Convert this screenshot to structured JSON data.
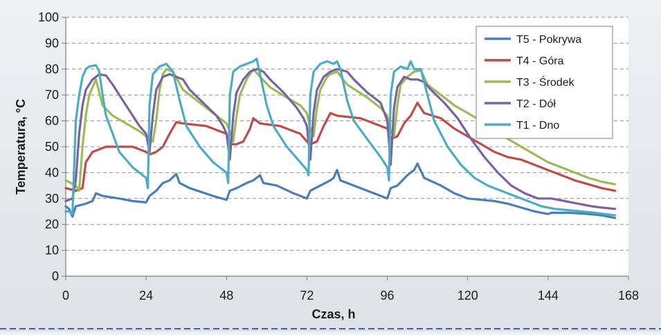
{
  "chart_data": {
    "type": "line",
    "xlabel": "Czas, h",
    "ylabel": "Temperatura, °C",
    "xlim": [
      0,
      168
    ],
    "ylim": [
      0,
      100
    ],
    "xticks": [
      0,
      24,
      48,
      72,
      96,
      120,
      144,
      168
    ],
    "yticks": [
      0,
      10,
      20,
      30,
      40,
      50,
      60,
      70,
      80,
      90,
      100
    ],
    "grid": "horizontal dashed",
    "legend_position": "top-right",
    "series": [
      {
        "name": "T5 - Pokrywa",
        "color": "#4a7ebb",
        "points": [
          [
            0,
            27
          ],
          [
            1,
            26
          ],
          [
            2,
            23
          ],
          [
            3,
            27
          ],
          [
            6,
            28
          ],
          [
            8,
            29
          ],
          [
            9,
            32
          ],
          [
            11,
            31
          ],
          [
            16,
            30
          ],
          [
            20,
            29
          ],
          [
            24,
            28.5
          ],
          [
            25,
            31
          ],
          [
            27,
            33
          ],
          [
            29,
            36
          ],
          [
            31,
            37
          ],
          [
            33,
            39.5
          ],
          [
            34,
            36
          ],
          [
            37,
            34
          ],
          [
            44,
            31
          ],
          [
            48,
            29.5
          ],
          [
            49,
            33
          ],
          [
            51,
            34
          ],
          [
            54,
            36
          ],
          [
            56,
            37
          ],
          [
            58,
            39
          ],
          [
            59,
            36
          ],
          [
            63,
            35
          ],
          [
            68,
            32
          ],
          [
            72,
            30
          ],
          [
            73,
            33
          ],
          [
            76,
            35
          ],
          [
            79,
            37
          ],
          [
            80,
            38
          ],
          [
            81,
            41
          ],
          [
            82,
            37
          ],
          [
            86,
            35
          ],
          [
            92,
            32
          ],
          [
            96,
            30
          ],
          [
            97,
            34
          ],
          [
            99,
            35
          ],
          [
            102,
            39
          ],
          [
            104,
            41
          ],
          [
            105,
            43.5
          ],
          [
            107,
            38
          ],
          [
            112,
            35
          ],
          [
            116,
            32
          ],
          [
            120,
            30
          ],
          [
            124,
            29.5
          ],
          [
            128,
            29
          ],
          [
            132,
            28
          ],
          [
            136,
            26.5
          ],
          [
            140,
            25
          ],
          [
            144,
            24
          ],
          [
            145,
            24.5
          ],
          [
            150,
            24.5
          ],
          [
            156,
            24
          ],
          [
            160,
            23.5
          ],
          [
            164,
            22.5
          ]
        ]
      },
      {
        "name": "T4 - Góra",
        "color": "#be4b48",
        "points": [
          [
            0,
            34
          ],
          [
            3,
            33
          ],
          [
            5,
            34
          ],
          [
            6,
            44
          ],
          [
            8,
            48
          ],
          [
            10,
            49
          ],
          [
            12,
            50
          ],
          [
            14,
            50
          ],
          [
            20,
            50
          ],
          [
            24,
            48
          ],
          [
            25,
            47
          ],
          [
            27,
            48
          ],
          [
            29,
            50
          ],
          [
            31,
            55
          ],
          [
            33,
            59.5
          ],
          [
            35,
            59
          ],
          [
            42,
            58
          ],
          [
            46,
            56
          ],
          [
            48,
            55
          ],
          [
            49,
            51
          ],
          [
            51,
            51
          ],
          [
            53,
            52
          ],
          [
            55,
            57
          ],
          [
            56,
            61
          ],
          [
            58,
            59
          ],
          [
            64,
            58
          ],
          [
            70,
            55
          ],
          [
            72,
            52
          ],
          [
            73,
            51
          ],
          [
            75,
            52
          ],
          [
            77,
            58
          ],
          [
            79,
            63
          ],
          [
            81,
            62
          ],
          [
            88,
            61
          ],
          [
            92,
            59
          ],
          [
            96,
            57
          ],
          [
            97,
            53
          ],
          [
            99,
            54
          ],
          [
            101,
            59
          ],
          [
            103,
            62
          ],
          [
            105,
            67
          ],
          [
            107,
            63
          ],
          [
            112,
            61
          ],
          [
            116,
            57
          ],
          [
            120,
            54
          ],
          [
            124,
            51
          ],
          [
            128,
            48
          ],
          [
            132,
            46
          ],
          [
            136,
            45
          ],
          [
            140,
            43
          ],
          [
            144,
            41
          ],
          [
            148,
            39
          ],
          [
            152,
            37
          ],
          [
            156,
            35.5
          ],
          [
            160,
            34
          ],
          [
            164,
            33
          ]
        ]
      },
      {
        "name": "T3 - Środek",
        "color": "#9bbb59",
        "points": [
          [
            0,
            37
          ],
          [
            3,
            35
          ],
          [
            4,
            33
          ],
          [
            5,
            50
          ],
          [
            6,
            62
          ],
          [
            7,
            70
          ],
          [
            9,
            76
          ],
          [
            11,
            66
          ],
          [
            14,
            62
          ],
          [
            18,
            59
          ],
          [
            22,
            56
          ],
          [
            24,
            54
          ],
          [
            25,
            53
          ],
          [
            26,
            52
          ],
          [
            27,
            60
          ],
          [
            28,
            72
          ],
          [
            29,
            78
          ],
          [
            30,
            80
          ],
          [
            32,
            79
          ],
          [
            35,
            72
          ],
          [
            40,
            67
          ],
          [
            44,
            63
          ],
          [
            48,
            59
          ],
          [
            49,
            56
          ],
          [
            50,
            52
          ],
          [
            51,
            62
          ],
          [
            52,
            70
          ],
          [
            54,
            76
          ],
          [
            56,
            80
          ],
          [
            58,
            77
          ],
          [
            61,
            73
          ],
          [
            66,
            69
          ],
          [
            70,
            66
          ],
          [
            72,
            63
          ],
          [
            73,
            57
          ],
          [
            74,
            54
          ],
          [
            75,
            65
          ],
          [
            76,
            72
          ],
          [
            78,
            77
          ],
          [
            79,
            78
          ],
          [
            81,
            79
          ],
          [
            84,
            74
          ],
          [
            90,
            69
          ],
          [
            94,
            65
          ],
          [
            96,
            62
          ],
          [
            97,
            56
          ],
          [
            98,
            54
          ],
          [
            99,
            66
          ],
          [
            100,
            74
          ],
          [
            102,
            77
          ],
          [
            104,
            79
          ],
          [
            106,
            79.5
          ],
          [
            108,
            74
          ],
          [
            112,
            70
          ],
          [
            116,
            66
          ],
          [
            120,
            63
          ],
          [
            124,
            60
          ],
          [
            128,
            57
          ],
          [
            132,
            53
          ],
          [
            136,
            50
          ],
          [
            140,
            47
          ],
          [
            144,
            44
          ],
          [
            148,
            42
          ],
          [
            152,
            40
          ],
          [
            156,
            38
          ],
          [
            160,
            36.5
          ],
          [
            164,
            35.5
          ]
        ]
      },
      {
        "name": "T2 - Dół",
        "color": "#7d60a0",
        "points": [
          [
            0,
            29
          ],
          [
            2,
            30
          ],
          [
            3,
            37
          ],
          [
            4,
            55
          ],
          [
            5,
            66
          ],
          [
            6,
            72
          ],
          [
            8,
            76
          ],
          [
            10,
            78
          ],
          [
            12,
            77.5
          ],
          [
            14,
            74
          ],
          [
            16,
            70
          ],
          [
            18,
            66
          ],
          [
            20,
            62
          ],
          [
            22,
            58
          ],
          [
            24,
            55
          ],
          [
            25,
            48
          ],
          [
            26,
            62
          ],
          [
            27,
            72
          ],
          [
            29,
            77
          ],
          [
            31,
            78
          ],
          [
            33,
            77
          ],
          [
            35,
            76
          ],
          [
            37,
            72
          ],
          [
            41,
            67
          ],
          [
            45,
            62
          ],
          [
            47,
            58
          ],
          [
            48,
            55
          ],
          [
            49,
            45
          ],
          [
            50,
            62
          ],
          [
            51,
            71
          ],
          [
            53,
            76
          ],
          [
            55,
            79
          ],
          [
            57,
            80
          ],
          [
            59,
            79
          ],
          [
            61,
            76
          ],
          [
            65,
            71
          ],
          [
            69,
            65
          ],
          [
            71,
            61
          ],
          [
            72,
            58
          ],
          [
            73,
            45
          ],
          [
            74,
            63
          ],
          [
            75,
            72
          ],
          [
            77,
            77
          ],
          [
            79,
            79
          ],
          [
            81,
            80
          ],
          [
            84,
            79
          ],
          [
            86,
            76
          ],
          [
            90,
            71
          ],
          [
            94,
            67
          ],
          [
            96,
            60
          ],
          [
            97,
            43
          ],
          [
            98,
            65
          ],
          [
            99,
            73
          ],
          [
            101,
            77
          ],
          [
            103,
            76
          ],
          [
            105,
            76
          ],
          [
            107,
            75
          ],
          [
            109,
            72
          ],
          [
            113,
            67
          ],
          [
            117,
            61
          ],
          [
            121,
            53
          ],
          [
            125,
            46
          ],
          [
            129,
            40
          ],
          [
            133,
            35
          ],
          [
            137,
            32
          ],
          [
            141,
            30
          ],
          [
            145,
            30
          ],
          [
            149,
            29
          ],
          [
            153,
            28
          ],
          [
            157,
            27
          ],
          [
            160,
            26.5
          ],
          [
            164,
            26
          ]
        ]
      },
      {
        "name": "T1 - Dno",
        "color": "#4bacc6",
        "points": [
          [
            0,
            25
          ],
          [
            1,
            25
          ],
          [
            2,
            24
          ],
          [
            3,
            60
          ],
          [
            4,
            70
          ],
          [
            5,
            77
          ],
          [
            6,
            80
          ],
          [
            7,
            81
          ],
          [
            9,
            81.5
          ],
          [
            10,
            79
          ],
          [
            11,
            70
          ],
          [
            12,
            62
          ],
          [
            14,
            55
          ],
          [
            16,
            48
          ],
          [
            20,
            42
          ],
          [
            24,
            38
          ],
          [
            24.5,
            34
          ],
          [
            25,
            66
          ],
          [
            26,
            78
          ],
          [
            28,
            81
          ],
          [
            30,
            82
          ],
          [
            32,
            79
          ],
          [
            34,
            68
          ],
          [
            36,
            58
          ],
          [
            40,
            50
          ],
          [
            44,
            44
          ],
          [
            48,
            40
          ],
          [
            48.5,
            36
          ],
          [
            49,
            70
          ],
          [
            50,
            79
          ],
          [
            52,
            81
          ],
          [
            54,
            82
          ],
          [
            56,
            83
          ],
          [
            57,
            84
          ],
          [
            58,
            78
          ],
          [
            60,
            66
          ],
          [
            62,
            58
          ],
          [
            66,
            50
          ],
          [
            70,
            44
          ],
          [
            72,
            41
          ],
          [
            72.5,
            39
          ],
          [
            73,
            70
          ],
          [
            74,
            79
          ],
          [
            76,
            82
          ],
          [
            78,
            83
          ],
          [
            80,
            82
          ],
          [
            81,
            83
          ],
          [
            82,
            80
          ],
          [
            84,
            68
          ],
          [
            86,
            60
          ],
          [
            90,
            53
          ],
          [
            94,
            46
          ],
          [
            96,
            42
          ],
          [
            96.5,
            37
          ],
          [
            97,
            70
          ],
          [
            98,
            79
          ],
          [
            100,
            81
          ],
          [
            102,
            80
          ],
          [
            103,
            83
          ],
          [
            104,
            80
          ],
          [
            106,
            80
          ],
          [
            108,
            70
          ],
          [
            110,
            60
          ],
          [
            114,
            50
          ],
          [
            118,
            43
          ],
          [
            122,
            38
          ],
          [
            126,
            35
          ],
          [
            130,
            33
          ],
          [
            134,
            31
          ],
          [
            138,
            29
          ],
          [
            142,
            27
          ],
          [
            146,
            26
          ],
          [
            150,
            25.5
          ],
          [
            154,
            25
          ],
          [
            158,
            24.5
          ],
          [
            164,
            23.5
          ]
        ]
      }
    ]
  }
}
